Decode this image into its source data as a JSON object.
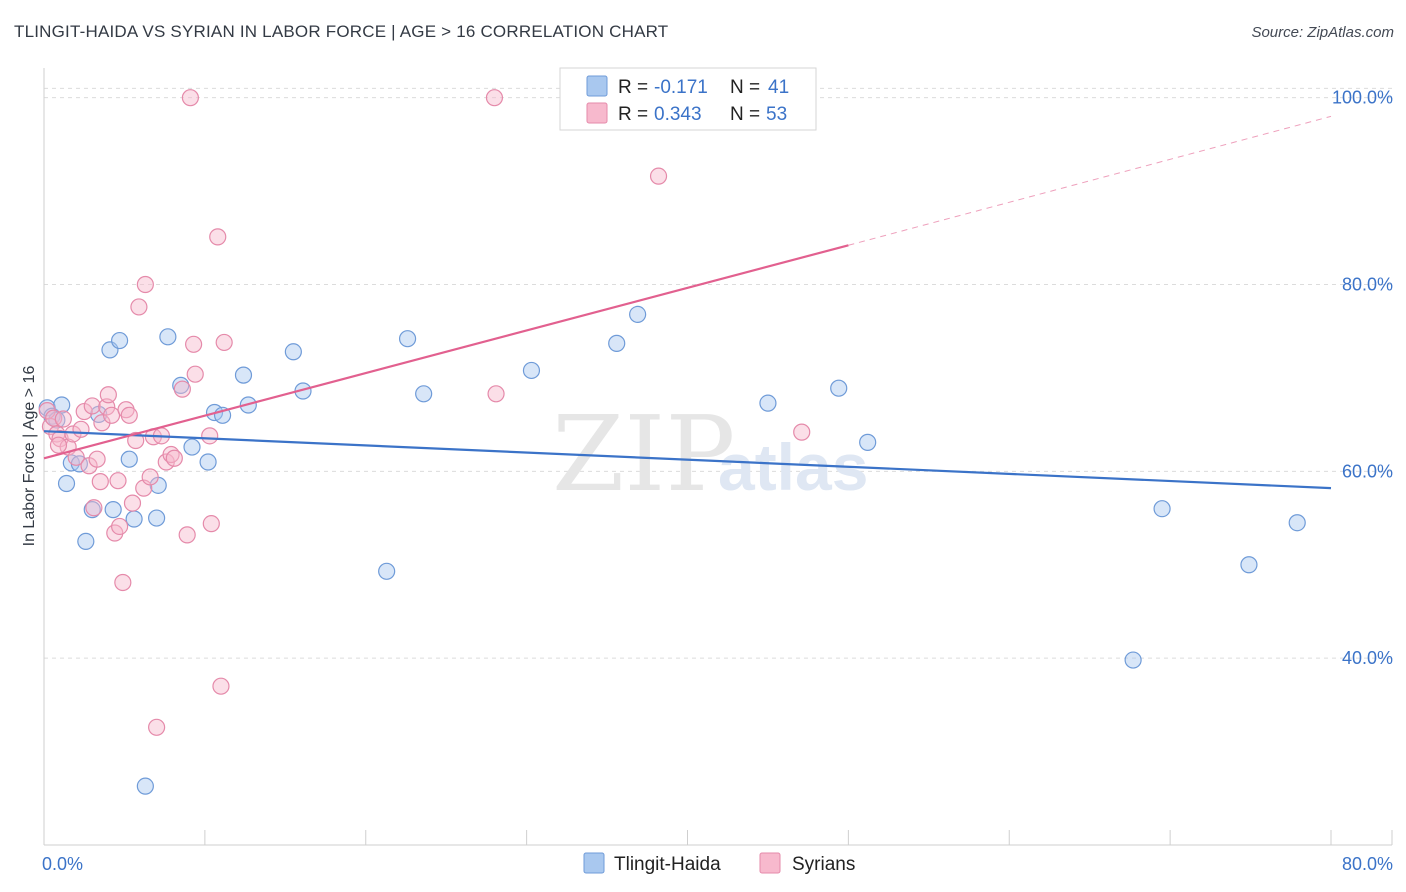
{
  "header": {
    "title": "TLINGIT-HAIDA VS SYRIAN IN LABOR FORCE | AGE > 16 CORRELATION CHART",
    "source": "Source: ZipAtlas.com"
  },
  "colors": {
    "blue": "#3b73c8",
    "blue_fill": "#a9c8ef",
    "pink": "#e2608f",
    "pink_fill": "#f7b9cd",
    "grid": "#dcdcdc"
  },
  "watermark": {
    "part1": "ZIP",
    "part2": "atlas"
  },
  "legend": {
    "rows": [
      {
        "r_label": "R =",
        "r_value": "-0.171",
        "n_label": "N =",
        "n_value": "41"
      },
      {
        "r_label": "R =",
        "r_value": "0.343",
        "n_label": "N =",
        "n_value": "53"
      }
    ]
  },
  "chart_data": {
    "type": "scatter",
    "title": "TLINGIT-HAIDA VS SYRIAN IN LABOR FORCE | AGE > 16 CORRELATION CHART",
    "xlabel": "",
    "ylabel": "In Labor Force | Age > 16",
    "xlim": [
      0,
      80
    ],
    "ylim": [
      20,
      102
    ],
    "x_tick_labels": [
      {
        "value": 0,
        "label": "0.0%"
      },
      {
        "value": 80,
        "label": "80.0%"
      }
    ],
    "y_tick_labels": [
      {
        "value": 40,
        "label": "40.0%"
      },
      {
        "value": 60,
        "label": "60.0%"
      },
      {
        "value": 80,
        "label": "80.0%"
      },
      {
        "value": 100,
        "label": "100.0%"
      }
    ],
    "series": [
      {
        "name": "Tlingit-Haida",
        "color": "#3b73c8",
        "R": -0.171,
        "N": 41,
        "trend": {
          "x0": 0,
          "y0": 64.3,
          "x1": 80,
          "y1": 58.2
        },
        "points": [
          [
            0.2,
            66.8
          ],
          [
            0.5,
            65.9
          ],
          [
            0.8,
            65.5
          ],
          [
            1.1,
            67.1
          ],
          [
            1.4,
            58.7
          ],
          [
            1.7,
            60.9
          ],
          [
            2.2,
            60.8
          ],
          [
            2.6,
            52.5
          ],
          [
            3.0,
            55.9
          ],
          [
            3.4,
            66.1
          ],
          [
            4.1,
            73.0
          ],
          [
            4.3,
            55.9
          ],
          [
            4.7,
            74.0
          ],
          [
            5.3,
            61.3
          ],
          [
            5.6,
            54.9
          ],
          [
            6.3,
            26.3
          ],
          [
            7.0,
            55.0
          ],
          [
            7.1,
            58.5
          ],
          [
            7.7,
            74.4
          ],
          [
            8.5,
            69.2
          ],
          [
            9.2,
            62.6
          ],
          [
            10.2,
            61.0
          ],
          [
            10.6,
            66.3
          ],
          [
            11.1,
            66.0
          ],
          [
            12.4,
            70.3
          ],
          [
            12.7,
            67.1
          ],
          [
            15.5,
            72.8
          ],
          [
            16.1,
            68.6
          ],
          [
            21.3,
            49.3
          ],
          [
            22.6,
            74.2
          ],
          [
            23.6,
            68.3
          ],
          [
            30.3,
            70.8
          ],
          [
            35.6,
            73.7
          ],
          [
            36.9,
            76.8
          ],
          [
            45.0,
            67.3
          ],
          [
            49.4,
            68.9
          ],
          [
            51.2,
            63.1
          ],
          [
            67.7,
            39.8
          ],
          [
            69.5,
            56.0
          ],
          [
            74.9,
            50.0
          ],
          [
            77.9,
            54.5
          ]
        ]
      },
      {
        "name": "Syrians",
        "color": "#e2608f",
        "R": 0.343,
        "N": 53,
        "trend": {
          "x0": 0,
          "y0": 61.4,
          "x1": 50,
          "y1": 84.2,
          "dash_x1": 80,
          "dash_y1": 98.0
        },
        "points": [
          [
            0.2,
            66.5
          ],
          [
            0.4,
            64.8
          ],
          [
            0.6,
            65.7
          ],
          [
            0.8,
            64.0
          ],
          [
            1.0,
            63.5
          ],
          [
            1.2,
            65.6
          ],
          [
            1.5,
            62.6
          ],
          [
            1.8,
            64.0
          ],
          [
            2.0,
            61.5
          ],
          [
            2.3,
            64.5
          ],
          [
            2.5,
            66.4
          ],
          [
            2.8,
            60.6
          ],
          [
            3.0,
            67.0
          ],
          [
            3.1,
            56.1
          ],
          [
            3.3,
            61.3
          ],
          [
            3.5,
            58.9
          ],
          [
            3.6,
            65.2
          ],
          [
            3.9,
            66.9
          ],
          [
            4.0,
            68.2
          ],
          [
            4.2,
            66.0
          ],
          [
            4.4,
            53.4
          ],
          [
            4.6,
            59.0
          ],
          [
            4.7,
            54.1
          ],
          [
            4.9,
            48.1
          ],
          [
            5.1,
            66.6
          ],
          [
            5.3,
            66.0
          ],
          [
            5.5,
            56.6
          ],
          [
            5.7,
            63.3
          ],
          [
            5.9,
            77.6
          ],
          [
            6.2,
            58.2
          ],
          [
            6.3,
            80.0
          ],
          [
            6.6,
            59.4
          ],
          [
            6.8,
            63.7
          ],
          [
            7.0,
            32.6
          ],
          [
            7.3,
            63.8
          ],
          [
            7.6,
            61.0
          ],
          [
            7.9,
            61.8
          ],
          [
            8.1,
            61.4
          ],
          [
            8.6,
            68.8
          ],
          [
            8.9,
            53.2
          ],
          [
            9.1,
            100.0
          ],
          [
            9.3,
            73.6
          ],
          [
            9.4,
            70.4
          ],
          [
            10.3,
            63.8
          ],
          [
            10.4,
            54.4
          ],
          [
            10.8,
            85.1
          ],
          [
            11.0,
            37.0
          ],
          [
            11.2,
            73.8
          ],
          [
            28.0,
            100.0
          ],
          [
            28.1,
            68.3
          ],
          [
            38.2,
            91.6
          ],
          [
            47.1,
            64.2
          ],
          [
            0.9,
            62.8
          ]
        ]
      }
    ],
    "legend_position": "top-center",
    "grid": true
  },
  "bottom_legend": {
    "items": [
      {
        "label": "Tlingit-Haida"
      },
      {
        "label": "Syrians"
      }
    ]
  }
}
